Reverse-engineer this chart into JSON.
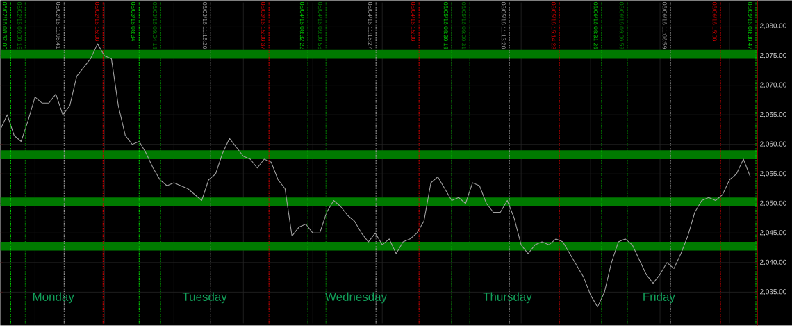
{
  "chart_data": {
    "type": "line",
    "ylim": [
      2029.7,
      2084
    ],
    "tick_labels": "y",
    "grid": true,
    "yticks": [
      {
        "value": 2035,
        "label": "2,035.00"
      },
      {
        "value": 2040,
        "label": "2,040.00"
      },
      {
        "value": 2045,
        "label": "2,045.00"
      },
      {
        "value": 2050,
        "label": "2,050.00"
      },
      {
        "value": 2055,
        "label": "2,055.00"
      },
      {
        "value": 2060,
        "label": "2,060.00"
      },
      {
        "value": 2065,
        "label": "2,065.00"
      },
      {
        "value": 2070,
        "label": "2,070.00"
      },
      {
        "value": 2075,
        "label": "2,075.00"
      },
      {
        "value": 2080,
        "label": "2,080.00"
      }
    ],
    "categories": [
      null,
      null,
      null,
      null,
      null,
      null,
      null,
      null,
      null,
      null,
      null,
      null,
      null,
      null,
      null,
      null,
      null,
      null,
      null,
      null,
      null,
      null,
      null,
      null,
      null,
      null,
      null,
      null,
      null,
      null,
      null,
      null,
      null,
      null,
      null,
      null,
      null,
      null,
      null,
      null,
      null,
      null,
      null,
      null,
      null,
      null,
      null,
      null,
      null,
      null,
      null,
      null,
      null,
      null,
      null,
      null,
      null,
      null,
      null,
      null,
      null,
      null,
      null,
      null,
      null,
      null,
      null,
      null,
      null,
      null,
      null,
      null,
      null,
      null,
      null,
      null,
      null,
      null,
      null,
      null,
      null,
      null,
      null,
      null,
      null,
      null,
      null,
      null,
      null,
      null,
      null,
      null,
      null,
      null,
      null,
      null,
      null,
      null,
      null,
      null,
      null,
      null,
      null,
      null,
      null,
      null,
      null,
      null,
      null
    ],
    "series": [
      {
        "color": "#a0a0a0",
        "values": [
          2062.5,
          2065,
          2061.5,
          2060.5,
          2064,
          2068,
          2067,
          2067,
          2068.5,
          2065,
          2066.5,
          2071.5,
          2073,
          2074.5,
          2077,
          2075,
          2074.5,
          2066.5,
          2061.5,
          2060,
          2060.5,
          2058.5,
          2056,
          2054,
          2053,
          2053.5,
          2053,
          2052.5,
          2051.5,
          2050.5,
          2054,
          2055,
          2058.5,
          2061,
          2059.5,
          2058,
          2057.5,
          2056,
          2057.5,
          2057,
          2054,
          2052.5,
          2044.5,
          2046,
          2046.5,
          2045,
          2045,
          2048.5,
          2050.5,
          2049.5,
          2048,
          2047,
          2045,
          2043.5,
          2045,
          2043,
          2044,
          2041.5,
          2043.5,
          2044,
          2045,
          2047,
          2053.5,
          2054.5,
          2052.5,
          2050.5,
          2051,
          2050,
          2053.5,
          2053,
          2050,
          2048.5,
          2048.5,
          2050.5,
          2047.5,
          2043,
          2041.5,
          2043,
          2043.5,
          2043,
          2044,
          2043.5,
          2041.5,
          2039.5,
          2037.5,
          2034.5,
          2032.5,
          2035,
          2040,
          2043.5,
          2044,
          2043,
          2040.5,
          2038,
          2036.5,
          2038,
          2040,
          2039,
          2041.5,
          2044.5,
          2048.5,
          2050.5,
          2051,
          2050.5,
          2051.5,
          2054,
          2055,
          2057.5,
          2054.5
        ]
      }
    ],
    "bands": [
      {
        "axis": "y",
        "from": 2074.5,
        "to": 2076,
        "color": "#007a00"
      },
      {
        "axis": "y",
        "from": 2057.5,
        "to": 2059,
        "color": "#007a00"
      },
      {
        "axis": "y",
        "from": 2049.5,
        "to": 2051,
        "color": "#007a00"
      },
      {
        "axis": "y",
        "from": 2042,
        "to": 2043.5,
        "color": "#007a00"
      }
    ],
    "annotations": [
      "05/02/16 08:32:00",
      "05/02/16 09:00:15",
      "05/02/16 11:05:41",
      "05/02/16 15:00",
      "05/03/16 08:34",
      "05/03/16 09:04:18",
      "05/03/16 11:15:20",
      "05/03/16 15:00:37",
      "05/04/16 08:32:22",
      "05/04/16 09:00:56",
      "05/04/16 11:15:27",
      "05/04/16 15:00",
      "05/05/16 08:30:18",
      "05/05/16 09:00:31",
      "05/05/16 11:13:20",
      "05/05/16 15:14:28",
      "05/06/16 08:31:26",
      "05/06/16 09:06:59",
      "05/06/16 11:06:59",
      "05/06/16 15:00",
      "05/09/16 08:30:47",
      "Monday",
      "Tuesday",
      "Wednesday",
      "Thursday",
      "Friday"
    ]
  }
}
